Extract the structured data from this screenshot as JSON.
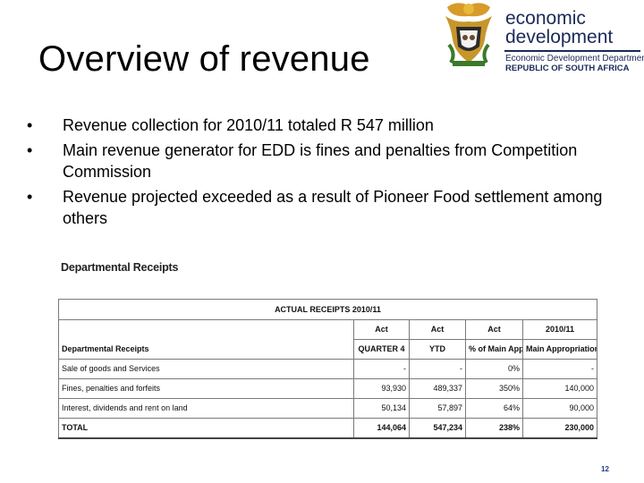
{
  "slide": {
    "title": "Overview of revenue",
    "page_number": "12"
  },
  "logo": {
    "line1": "economic",
    "line2": "development",
    "sub1": "Economic Development Department",
    "sub2": "REPUBLIC OF SOUTH AFRICA",
    "icon": "coat-of-arms-icon",
    "color": "#1b2a57"
  },
  "bullets": [
    "Revenue collection for 2010/11 totaled R 547 million",
    "Main revenue generator for EDD is fines and penalties from Competition Commission",
    "Revenue projected exceeded as a result of Pioneer Food settlement among others"
  ],
  "receipts": {
    "heading": "Departmental Receipts",
    "table_title": "ACTUAL RECEIPTS 2010/11",
    "header_top": [
      "",
      "Act",
      "Act",
      "Act",
      "2010/11"
    ],
    "header_bottom": [
      "Departmental Receipts",
      "QUARTER 4",
      "YTD",
      "% of Main App",
      "Main Appropriation"
    ],
    "rows": [
      [
        "Sale of goods and Services",
        "-",
        "-",
        "0%",
        "-"
      ],
      [
        "Fines, penalties and forfeits",
        "93,930",
        "489,337",
        "350%",
        "140,000"
      ],
      [
        "Interest, dividends and rent on land",
        "50,134",
        "57,897",
        "64%",
        "90,000"
      ],
      [
        "TOTAL",
        "144,064",
        "547,234",
        "238%",
        "230,000"
      ]
    ]
  }
}
